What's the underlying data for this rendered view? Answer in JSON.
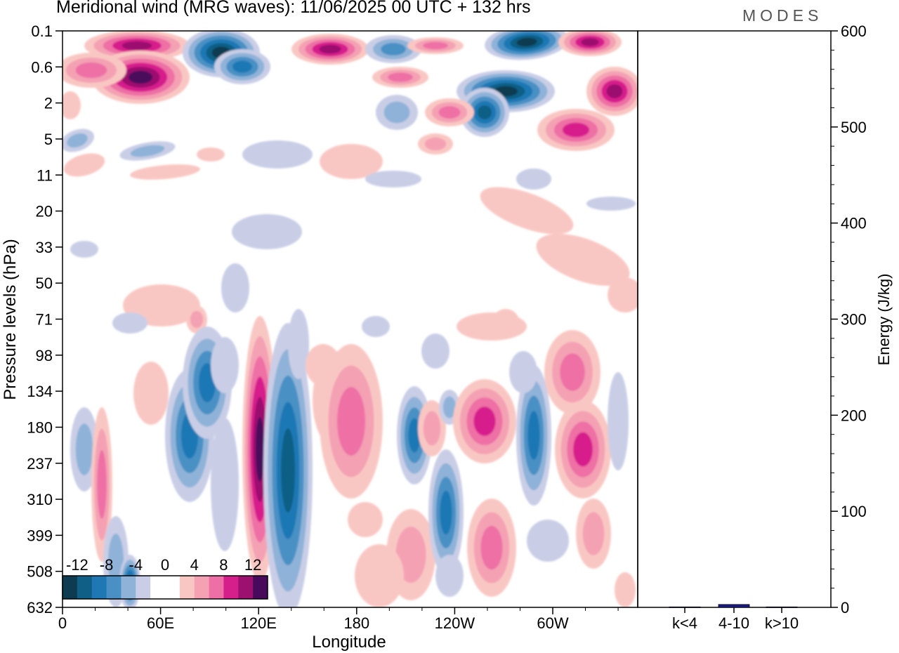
{
  "title": "Meridional wind (MRG waves):  11/06/2025  00 UTC  + 132 hrs",
  "brand": "MODES",
  "chart_data": {
    "type": "heatmap",
    "xlabel": "Longitude",
    "ylabel": "Pressure levels (hPa)",
    "x_ticks": [
      "0",
      "60E",
      "120E",
      "180",
      "120W",
      "60W"
    ],
    "y_ticks": [
      "0.1",
      "0.6",
      "2",
      "5",
      "11",
      "20",
      "33",
      "50",
      "71",
      "98",
      "134",
      "180",
      "237",
      "310",
      "399",
      "508",
      "632"
    ],
    "colorbar": {
      "labels": [
        "-12",
        "-8",
        "-4",
        "0",
        "4",
        "8",
        "12"
      ],
      "colors": [
        "#0d3b4f",
        "#0f5f86",
        "#1f78b4",
        "#4a90c4",
        "#8fb2d8",
        "#c9cee6",
        "#ffffff",
        "#ffffff",
        "#f9c7c3",
        "#f4a1b4",
        "#ee6fa5",
        "#d71f8c",
        "#9c1070",
        "#4a0a5c"
      ]
    },
    "colors": {
      "negative_dark": "#0d3b4f",
      "negative_mid": "#1f78b4",
      "negative_light": "#c9cee6",
      "positive_light": "#f9c7c3",
      "positive_mid": "#ee6fa5",
      "positive_dark": "#4a0a5c"
    },
    "energy_panel": {
      "type": "bar",
      "ylabel": "Energy (J/kg)",
      "ylim": [
        0,
        600
      ],
      "y_ticks": [
        "0",
        "100",
        "200",
        "300",
        "400",
        "500",
        "600"
      ],
      "categories": [
        "k<4",
        "4-10",
        "k>10"
      ],
      "values": [
        0.5,
        3,
        0.5
      ],
      "bar_color": "#1a1a8c"
    }
  }
}
